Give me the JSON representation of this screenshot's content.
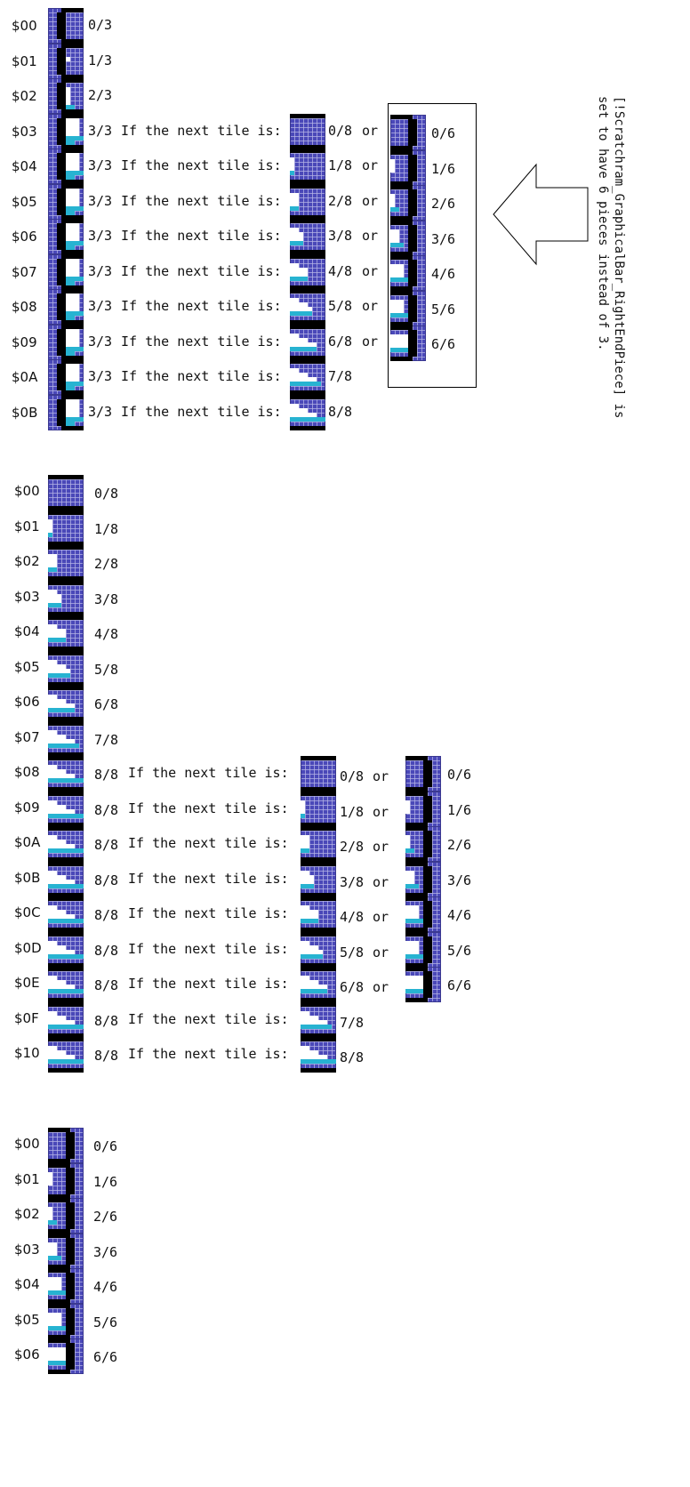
{
  "section1": {
    "rows": [
      {
        "index": "$00",
        "frac": "0/3",
        "fill": 0
      },
      {
        "index": "$01",
        "frac": "1/3",
        "fill": 1
      },
      {
        "index": "$02",
        "frac": "2/3",
        "fill": 2
      },
      {
        "index": "$03",
        "frac": "3/3",
        "fill": 3,
        "text": "If the next tile is:",
        "next_frac": "0/8",
        "or": "or"
      },
      {
        "index": "$04",
        "frac": "3/3",
        "fill": 3,
        "text": "If the next tile is:",
        "next_frac": "1/8",
        "or": "or"
      },
      {
        "index": "$05",
        "frac": "3/3",
        "fill": 3,
        "text": "If the next tile is:",
        "next_frac": "2/8",
        "or": "or"
      },
      {
        "index": "$06",
        "frac": "3/3",
        "fill": 3,
        "text": "If the next tile is:",
        "next_frac": "3/8",
        "or": "or"
      },
      {
        "index": "$07",
        "frac": "3/3",
        "fill": 3,
        "text": "If the next tile is:",
        "next_frac": "4/8",
        "or": "or"
      },
      {
        "index": "$08",
        "frac": "3/3",
        "fill": 3,
        "text": "If the next tile is:",
        "next_frac": "5/8",
        "or": "or"
      },
      {
        "index": "$09",
        "frac": "3/3",
        "fill": 3,
        "text": "If the next tile is:",
        "next_frac": "6/8",
        "or": "or"
      },
      {
        "index": "$0A",
        "frac": "3/3",
        "fill": 3,
        "text": "If the next tile is:",
        "next_frac": "7/8"
      },
      {
        "index": "$0B",
        "frac": "3/3",
        "fill": 3,
        "text": "If the next tile is:",
        "next_frac": "8/8"
      }
    ],
    "alt_pieces": [
      "0/6",
      "1/6",
      "2/6",
      "3/6",
      "4/6",
      "5/6",
      "6/6"
    ]
  },
  "note": "[!Scratchram_GraphicalBar_RightEndPiece] is\nset to have 6 pieces instead of 3.",
  "section2": {
    "rows": [
      {
        "index": "$00",
        "frac": "0/8"
      },
      {
        "index": "$01",
        "frac": "1/8"
      },
      {
        "index": "$02",
        "frac": "2/8"
      },
      {
        "index": "$03",
        "frac": "3/8"
      },
      {
        "index": "$04",
        "frac": "4/8"
      },
      {
        "index": "$05",
        "frac": "5/8"
      },
      {
        "index": "$06",
        "frac": "6/8"
      },
      {
        "index": "$07",
        "frac": "7/8"
      },
      {
        "index": "$08",
        "frac": "8/8",
        "text": "If the next tile is:",
        "next_frac": "0/8",
        "or": "or",
        "alt_frac": "0/6"
      },
      {
        "index": "$09",
        "frac": "8/8",
        "text": "If the next tile is:",
        "next_frac": "1/8",
        "or": "or",
        "alt_frac": "1/6"
      },
      {
        "index": "$0A",
        "frac": "8/8",
        "text": "If the next tile is:",
        "next_frac": "2/8",
        "or": "or",
        "alt_frac": "2/6"
      },
      {
        "index": "$0B",
        "frac": "8/8",
        "text": "If the next tile is:",
        "next_frac": "3/8",
        "or": "or",
        "alt_frac": "3/6"
      },
      {
        "index": "$0C",
        "frac": "8/8",
        "text": "If the next tile is:",
        "next_frac": "4/8",
        "or": "or",
        "alt_frac": "4/6"
      },
      {
        "index": "$0D",
        "frac": "8/8",
        "text": "If the next tile is:",
        "next_frac": "5/8",
        "or": "or",
        "alt_frac": "5/6"
      },
      {
        "index": "$0E",
        "frac": "8/8",
        "text": "If the next tile is:",
        "next_frac": "6/8",
        "or": "or",
        "alt_frac": "6/6"
      },
      {
        "index": "$0F",
        "frac": "8/8",
        "text": "If the next tile is:",
        "next_frac": "7/8"
      },
      {
        "index": "$10",
        "frac": "8/8",
        "text": "If the next tile is:",
        "next_frac": "8/8"
      }
    ]
  },
  "section3": {
    "rows": [
      {
        "index": "$00",
        "frac": "0/6"
      },
      {
        "index": "$01",
        "frac": "1/6"
      },
      {
        "index": "$02",
        "frac": "2/6"
      },
      {
        "index": "$03",
        "frac": "3/6"
      },
      {
        "index": "$04",
        "frac": "4/6"
      },
      {
        "index": "$05",
        "frac": "5/6"
      },
      {
        "index": "$06",
        "frac": "6/6"
      }
    ]
  },
  "colors": {
    "tile_bg": "#4a48b8",
    "grid": "#b4b4e6",
    "outline": "#000000",
    "fill_white": "#ffffff",
    "fill_cyan": "#27b3d1"
  }
}
